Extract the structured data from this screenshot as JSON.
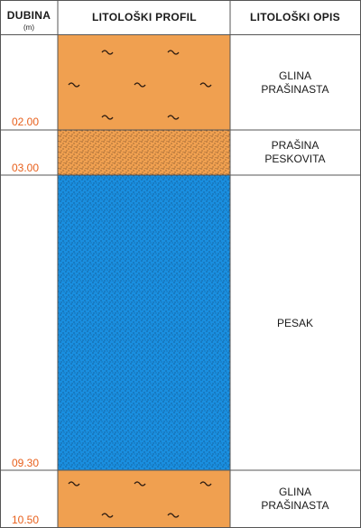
{
  "header": {
    "depth_title": "DUBINA",
    "depth_unit": "(m)",
    "profile_title": "LITOLOŠKI PROFIL",
    "description_title": "LITOLOŠKI OPIS"
  },
  "colors": {
    "clay": "#f0a050",
    "silt": "#f0a050",
    "sand": "#1a8fe0",
    "depth_text": "#e8601c",
    "grid": "#555555"
  },
  "layers": [
    {
      "top": 0.0,
      "bottom": 2.0,
      "material": "clay",
      "pattern": "wave",
      "description": [
        "GLINA",
        "PRAŠINASTA"
      ]
    },
    {
      "top": 2.0,
      "bottom": 3.0,
      "material": "silt",
      "pattern": "dots",
      "description": [
        "PRAŠINA",
        "PESKOVITA"
      ]
    },
    {
      "top": 3.0,
      "bottom": 9.3,
      "material": "sand",
      "pattern": "dots",
      "description": [
        "PESAK"
      ]
    },
    {
      "top": 9.3,
      "bottom": 10.5,
      "material": "clay",
      "pattern": "wave",
      "description": [
        "GLINA",
        "PRAŠINASTA"
      ]
    }
  ],
  "depth_labels": [
    "02.00",
    "03.00",
    "09.30",
    "10.50"
  ]
}
